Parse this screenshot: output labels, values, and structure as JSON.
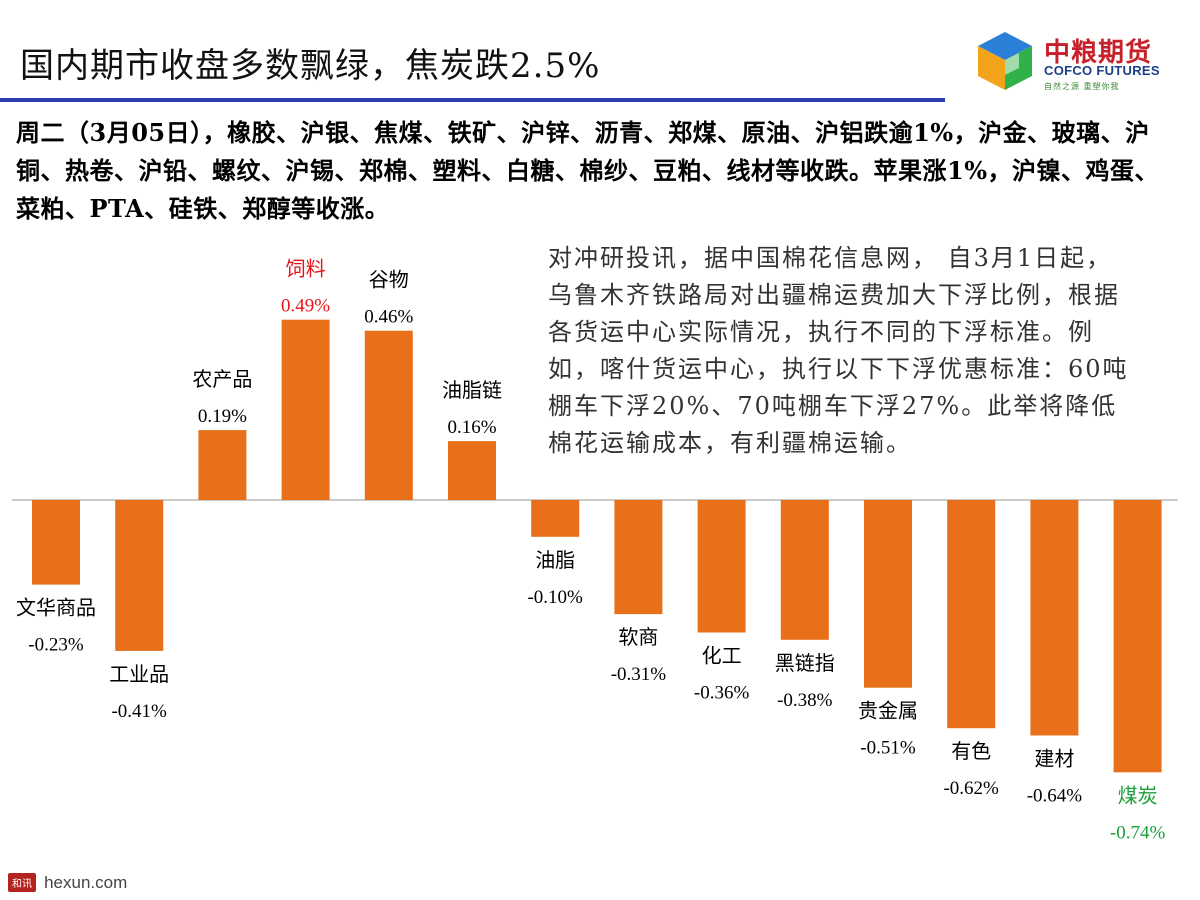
{
  "header": {
    "title": "国内期市收盘多数飘绿，焦炭跌2.5%",
    "logo": {
      "name_cn": "中粮期货",
      "name_en": "COFCO FUTURES",
      "slogan": "自然之源 重塑你我"
    }
  },
  "summary": "周二（3月05日），橡胶、沪银、焦煤、铁矿、沪锌、沥青、郑煤、原油、沪铝跌逾1%，沪金、玻璃、沪铜、热卷、沪铅、螺纹、沪锡、郑棉、塑料、白糖、棉纱、豆粕、线材等收跌。苹果涨1%，沪镍、鸡蛋、菜粕、PTA、硅铁、郑醇等收涨。",
  "news": "对冲研投讯，据中国棉花信息网， 自3月1日起，乌鲁木齐铁路局对出疆棉运费加大下浮比例，根据各货运中心实际情况，执行不同的下浮标准。例如，喀什货运中心，执行以下下浮优惠标准：60吨棚车下浮20%、70吨棚车下浮27%。此举将降低棉花运输成本，有利疆棉运输。",
  "colors": {
    "bar": "#e8701a",
    "highlight_red": "#e8141c",
    "highlight_green": "#1aa03a",
    "title_rule": "#2b3fae"
  },
  "chart_data": {
    "type": "bar",
    "title": "",
    "xlabel": "",
    "ylabel": "",
    "ylim": [
      -0.74,
      0.49
    ],
    "categories": [
      "文华商品",
      "工业品",
      "农产品",
      "饲料",
      "谷物",
      "油脂链",
      "油脂",
      "软商",
      "化工",
      "黑链指",
      "贵金属",
      "有色",
      "建材",
      "煤炭"
    ],
    "values": [
      -0.23,
      -0.41,
      0.19,
      0.49,
      0.46,
      0.16,
      -0.1,
      -0.31,
      -0.36,
      -0.38,
      -0.51,
      -0.62,
      -0.64,
      -0.74
    ],
    "value_labels": [
      "-0.23%",
      "-0.41%",
      "0.19%",
      "0.49%",
      "0.46%",
      "0.16%",
      "-0.10%",
      "-0.31%",
      "-0.36%",
      "-0.38%",
      "-0.51%",
      "-0.62%",
      "-0.64%",
      "-0.74%"
    ],
    "label_colors": [
      "#000000",
      "#000000",
      "#000000",
      "#e8141c",
      "#000000",
      "#000000",
      "#000000",
      "#000000",
      "#000000",
      "#000000",
      "#000000",
      "#000000",
      "#000000",
      "#1aa03a"
    ]
  },
  "footer": {
    "mark": "和讯",
    "site": "hexun.com"
  }
}
